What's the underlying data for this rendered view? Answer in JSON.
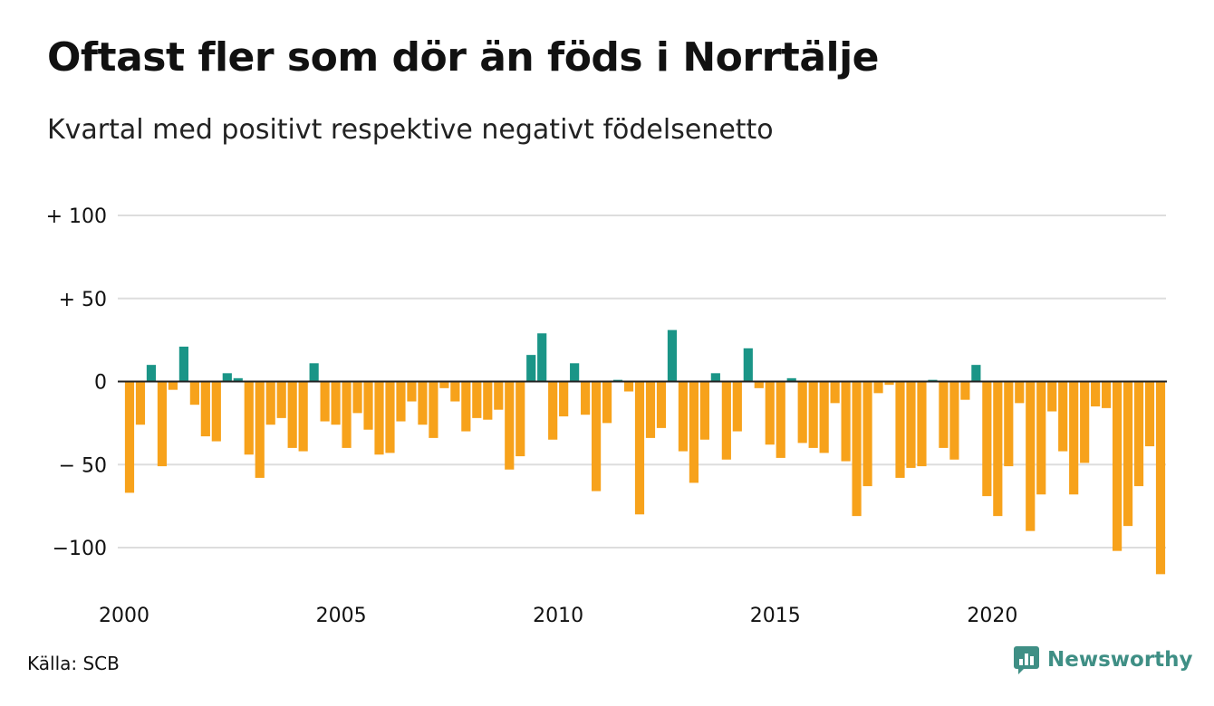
{
  "header": {
    "title": "Oftast fler som dör än föds i Norrtälje",
    "subtitle": "Kvartal med positivt respektive negativt födelsenetto"
  },
  "footer": {
    "source": "Källa: SCB",
    "brand": "Newsworthy",
    "brand_icon": "bar-chart-logo-icon"
  },
  "colors": {
    "positive": "#1a9587",
    "negative": "#f7a21b",
    "grid": "#dddddd",
    "brand": "#3f8f85"
  },
  "chart_data": {
    "type": "bar",
    "title": "Oftast fler som dör än föds i Norrtälje",
    "subtitle": "Kvartal med positivt respektive negativt födelsenetto",
    "ylim": [
      -120,
      100
    ],
    "yticks": [
      100,
      50,
      0,
      -50,
      -100
    ],
    "ytick_labels": [
      "+ 100",
      "+  50",
      "0",
      "− 50",
      "−100"
    ],
    "x_ticks": [
      2000,
      2005,
      2010,
      2015,
      2020
    ],
    "x_tick_labels": [
      "2000",
      "2005",
      "2010",
      "2015",
      "2020"
    ],
    "grid": true,
    "legend": "none",
    "x_start_year": 2000,
    "periods_per_year": 4,
    "values": [
      -67,
      -26,
      10,
      -51,
      -5,
      21,
      -14,
      -33,
      -36,
      5,
      2,
      -44,
      -58,
      -26,
      -22,
      -40,
      -42,
      11,
      -24,
      -26,
      -40,
      -19,
      -29,
      -44,
      -43,
      -24,
      -12,
      -26,
      -34,
      -4,
      -12,
      -30,
      -22,
      -23,
      -17,
      -53,
      -45,
      16,
      29,
      -35,
      -21,
      11,
      -20,
      -66,
      -25,
      1,
      -6,
      -80,
      -34,
      -28,
      31,
      -42,
      -61,
      -35,
      5,
      -47,
      -30,
      20,
      -4,
      -38,
      -46,
      2,
      -37,
      -40,
      -43,
      -13,
      -48,
      -81,
      -63,
      -7,
      -2,
      -58,
      -52,
      -51,
      1,
      -40,
      -47,
      -11,
      10,
      -69,
      -81,
      -51,
      -13,
      -90,
      -68,
      -18,
      -42,
      -68,
      -49,
      -15,
      -16,
      -102,
      -87,
      -63,
      -39,
      -116
    ]
  }
}
